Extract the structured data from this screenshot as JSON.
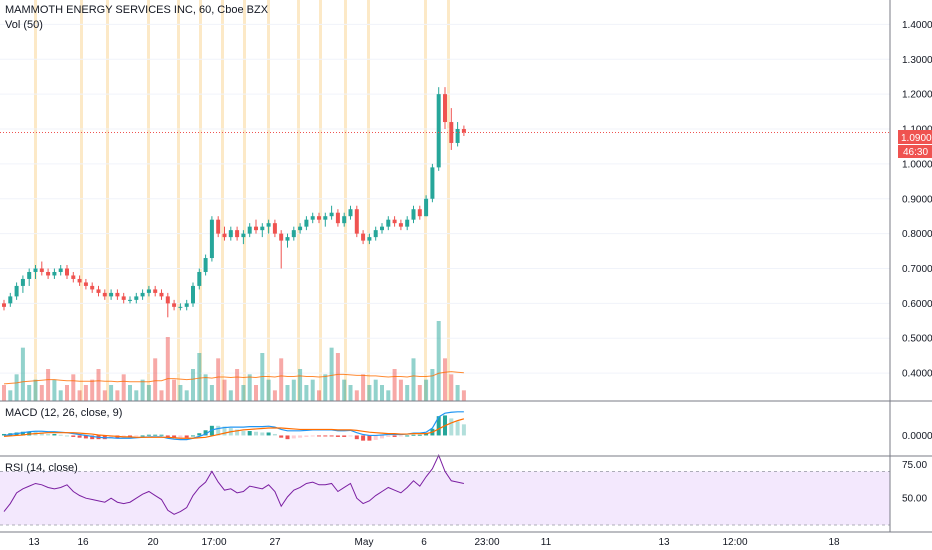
{
  "header": {
    "title": "MAMMOTH ENERGY SERVICES INC, 60, Cboe BZX",
    "volume_label": "Vol (50)"
  },
  "price_badge": {
    "value": "1.0900",
    "countdown": "46:30"
  },
  "macd_label": "MACD (12, 26, close, 9)",
  "rsi_label": "RSI (14, close)",
  "colors": {
    "up": "#26a69a",
    "down": "#ef5350",
    "session": "#fbe3b9",
    "price_line": "#ef5350",
    "macd_line": "#2196f3",
    "signal_line": "#ff6d00",
    "rsi_line": "#7b1fa2",
    "rsi_band": "#f3e8fd",
    "vol_ma": "#ff6d00"
  },
  "x_axis": {
    "labels": [
      "13",
      "16",
      "20",
      "17:00",
      "27",
      "May",
      "6",
      "23:00",
      "11",
      "13",
      "12:00",
      "18"
    ]
  },
  "chart_data": [
    {
      "type": "candlestick",
      "y_ticks": [
        "1.4000",
        "1.3000",
        "1.2000",
        "1.1000",
        "1.0000",
        "0.9000",
        "0.8000",
        "0.7000",
        "0.6000",
        "0.5000",
        "0.4000"
      ],
      "ylim": [
        0.32,
        1.47
      ],
      "last_price": 1.09,
      "bars": [
        [
          0.6,
          0.61,
          0.58,
          0.59
        ],
        [
          0.6,
          0.63,
          0.59,
          0.62
        ],
        [
          0.62,
          0.66,
          0.61,
          0.65
        ],
        [
          0.65,
          0.68,
          0.63,
          0.67
        ],
        [
          0.67,
          0.7,
          0.65,
          0.69
        ],
        [
          0.69,
          0.71,
          0.67,
          0.7
        ],
        [
          0.7,
          0.72,
          0.68,
          0.69
        ],
        [
          0.69,
          0.7,
          0.67,
          0.68
        ],
        [
          0.68,
          0.7,
          0.67,
          0.69
        ],
        [
          0.69,
          0.71,
          0.68,
          0.7
        ],
        [
          0.7,
          0.71,
          0.67,
          0.68
        ],
        [
          0.68,
          0.69,
          0.66,
          0.67
        ],
        [
          0.67,
          0.68,
          0.65,
          0.66
        ],
        [
          0.66,
          0.67,
          0.64,
          0.65
        ],
        [
          0.65,
          0.66,
          0.63,
          0.64
        ],
        [
          0.64,
          0.65,
          0.62,
          0.63
        ],
        [
          0.63,
          0.64,
          0.61,
          0.62
        ],
        [
          0.62,
          0.64,
          0.61,
          0.63
        ],
        [
          0.63,
          0.64,
          0.61,
          0.62
        ],
        [
          0.62,
          0.63,
          0.6,
          0.61
        ],
        [
          0.61,
          0.62,
          0.6,
          0.61
        ],
        [
          0.61,
          0.63,
          0.6,
          0.62
        ],
        [
          0.62,
          0.64,
          0.61,
          0.63
        ],
        [
          0.63,
          0.65,
          0.62,
          0.64
        ],
        [
          0.64,
          0.65,
          0.62,
          0.63
        ],
        [
          0.63,
          0.64,
          0.61,
          0.62
        ],
        [
          0.62,
          0.63,
          0.56,
          0.6
        ],
        [
          0.6,
          0.61,
          0.58,
          0.59
        ],
        [
          0.59,
          0.6,
          0.58,
          0.59
        ],
        [
          0.59,
          0.61,
          0.58,
          0.6
        ],
        [
          0.6,
          0.66,
          0.59,
          0.65
        ],
        [
          0.65,
          0.7,
          0.64,
          0.69
        ],
        [
          0.69,
          0.74,
          0.68,
          0.73
        ],
        [
          0.73,
          0.85,
          0.72,
          0.84
        ],
        [
          0.84,
          0.85,
          0.79,
          0.8
        ],
        [
          0.8,
          0.82,
          0.78,
          0.79
        ],
        [
          0.79,
          0.82,
          0.78,
          0.81
        ],
        [
          0.81,
          0.82,
          0.78,
          0.79
        ],
        [
          0.79,
          0.81,
          0.77,
          0.8
        ],
        [
          0.8,
          0.83,
          0.79,
          0.82
        ],
        [
          0.82,
          0.84,
          0.8,
          0.81
        ],
        [
          0.81,
          0.83,
          0.79,
          0.82
        ],
        [
          0.82,
          0.84,
          0.8,
          0.83
        ],
        [
          0.83,
          0.84,
          0.79,
          0.8
        ],
        [
          0.8,
          0.81,
          0.7,
          0.78
        ],
        [
          0.78,
          0.8,
          0.76,
          0.79
        ],
        [
          0.79,
          0.82,
          0.78,
          0.81
        ],
        [
          0.81,
          0.83,
          0.8,
          0.82
        ],
        [
          0.82,
          0.85,
          0.81,
          0.84
        ],
        [
          0.84,
          0.86,
          0.83,
          0.85
        ],
        [
          0.85,
          0.86,
          0.83,
          0.84
        ],
        [
          0.84,
          0.86,
          0.82,
          0.85
        ],
        [
          0.85,
          0.88,
          0.84,
          0.86
        ],
        [
          0.86,
          0.87,
          0.82,
          0.83
        ],
        [
          0.83,
          0.86,
          0.82,
          0.85
        ],
        [
          0.85,
          0.88,
          0.84,
          0.87
        ],
        [
          0.87,
          0.88,
          0.79,
          0.8
        ],
        [
          0.8,
          0.81,
          0.77,
          0.78
        ],
        [
          0.78,
          0.8,
          0.77,
          0.79
        ],
        [
          0.79,
          0.82,
          0.78,
          0.81
        ],
        [
          0.81,
          0.83,
          0.8,
          0.82
        ],
        [
          0.82,
          0.85,
          0.81,
          0.84
        ],
        [
          0.84,
          0.85,
          0.82,
          0.83
        ],
        [
          0.83,
          0.84,
          0.81,
          0.82
        ],
        [
          0.82,
          0.85,
          0.81,
          0.84
        ],
        [
          0.84,
          0.88,
          0.83,
          0.87
        ],
        [
          0.87,
          0.88,
          0.84,
          0.85
        ],
        [
          0.85,
          0.91,
          0.85,
          0.9
        ],
        [
          0.9,
          1.0,
          0.89,
          0.99
        ],
        [
          0.99,
          1.22,
          0.98,
          1.2
        ],
        [
          1.2,
          1.22,
          1.1,
          1.12
        ],
        [
          1.12,
          1.16,
          1.04,
          1.06
        ],
        [
          1.06,
          1.12,
          1.05,
          1.1
        ],
        [
          1.1,
          1.11,
          1.08,
          1.09
        ]
      ]
    },
    {
      "type": "bar",
      "name": "Vol (50)",
      "values": [
        3,
        2,
        5,
        10,
        3,
        4,
        3,
        6,
        4,
        2,
        3,
        5,
        2,
        3,
        4,
        6,
        2,
        3,
        2,
        5,
        3,
        2,
        4,
        3,
        8,
        2,
        12,
        4,
        3,
        2,
        6,
        9,
        5,
        3,
        8,
        4,
        2,
        6,
        3,
        5,
        3,
        9,
        4,
        2,
        8,
        3,
        4,
        6,
        3,
        4,
        2,
        5,
        10,
        9,
        4,
        3,
        2,
        5,
        3,
        4,
        3,
        2,
        6,
        4,
        3,
        8,
        3,
        4,
        6,
        15,
        8,
        5,
        3,
        2
      ],
      "ma": [
        3.2,
        3.3,
        3.4,
        3.6,
        3.7,
        3.8,
        3.9,
        4.0,
        4.0,
        3.9,
        3.8,
        3.8,
        3.7,
        3.7,
        3.7,
        3.8,
        3.7,
        3.7,
        3.6,
        3.7,
        3.6,
        3.6,
        3.6,
        3.6,
        3.8,
        3.8,
        4.2,
        4.2,
        4.1,
        4.0,
        4.1,
        4.3,
        4.4,
        4.3,
        4.5,
        4.5,
        4.4,
        4.5,
        4.4,
        4.5,
        4.4,
        4.6,
        4.6,
        4.5,
        4.7,
        4.6,
        4.6,
        4.7,
        4.6,
        4.6,
        4.5,
        4.6,
        4.8,
        5.0,
        5.0,
        4.9,
        4.8,
        4.8,
        4.7,
        4.7,
        4.6,
        4.5,
        4.6,
        4.6,
        4.5,
        4.7,
        4.6,
        4.6,
        4.7,
        5.2,
        5.4,
        5.5,
        5.4,
        5.3
      ]
    },
    {
      "type": "line",
      "name": "MACD (12, 26, close, 9)",
      "y_ticks": [
        "0.0000"
      ],
      "ylim": [
        -0.04,
        0.07
      ],
      "series": [
        {
          "values": [
            0.0,
            0.002,
            0.004,
            0.006,
            0.008,
            0.009,
            0.009,
            0.008,
            0.008,
            0.007,
            0.006,
            0.004,
            0.002,
            0.0,
            -0.002,
            -0.004,
            -0.005,
            -0.005,
            -0.006,
            -0.006,
            -0.006,
            -0.005,
            -0.004,
            -0.003,
            -0.003,
            -0.003,
            -0.006,
            -0.008,
            -0.009,
            -0.009,
            -0.006,
            -0.002,
            0.003,
            0.012,
            0.015,
            0.017,
            0.018,
            0.018,
            0.018,
            0.019,
            0.019,
            0.019,
            0.02,
            0.018,
            0.013,
            0.01,
            0.01,
            0.01,
            0.011,
            0.012,
            0.012,
            0.012,
            0.012,
            0.01,
            0.01,
            0.011,
            0.006,
            0.002,
            0.0,
            0.0,
            0.001,
            0.002,
            0.002,
            0.002,
            0.003,
            0.005,
            0.005,
            0.007,
            0.016,
            0.04,
            0.048,
            0.05,
            0.051,
            0.051
          ]
        },
        {
          "values": [
            -0.002,
            -0.001,
            0.0,
            0.001,
            0.003,
            0.004,
            0.005,
            0.006,
            0.006,
            0.006,
            0.006,
            0.006,
            0.005,
            0.004,
            0.003,
            0.001,
            0.0,
            -0.001,
            -0.002,
            -0.003,
            -0.003,
            -0.004,
            -0.004,
            -0.004,
            -0.004,
            -0.004,
            -0.004,
            -0.005,
            -0.006,
            -0.006,
            -0.006,
            -0.005,
            -0.004,
            -0.001,
            0.002,
            0.005,
            0.008,
            0.01,
            0.012,
            0.013,
            0.014,
            0.015,
            0.016,
            0.016,
            0.016,
            0.015,
            0.014,
            0.013,
            0.013,
            0.013,
            0.013,
            0.013,
            0.013,
            0.012,
            0.012,
            0.012,
            0.011,
            0.009,
            0.007,
            0.006,
            0.005,
            0.004,
            0.004,
            0.003,
            0.003,
            0.004,
            0.004,
            0.004,
            0.007,
            0.014,
            0.021,
            0.027,
            0.032,
            0.036
          ]
        }
      ]
    },
    {
      "type": "line",
      "name": "RSI (14, close)",
      "y_ticks": [
        "75.00",
        "50.00"
      ],
      "ylim": [
        30,
        80
      ],
      "band": [
        30,
        70
      ],
      "values": [
        40,
        46,
        54,
        57,
        59,
        61,
        60,
        58,
        57,
        58,
        60,
        55,
        52,
        50,
        49,
        48,
        47,
        50,
        47,
        46,
        47,
        50,
        53,
        55,
        52,
        49,
        41,
        38,
        40,
        43,
        52,
        58,
        62,
        70,
        62,
        56,
        57,
        54,
        55,
        59,
        58,
        57,
        60,
        55,
        44,
        51,
        56,
        58,
        61,
        62,
        60,
        60,
        61,
        55,
        58,
        61,
        50,
        46,
        48,
        52,
        55,
        58,
        56,
        54,
        58,
        63,
        59,
        66,
        72,
        82,
        70,
        63,
        62,
        61
      ]
    }
  ]
}
